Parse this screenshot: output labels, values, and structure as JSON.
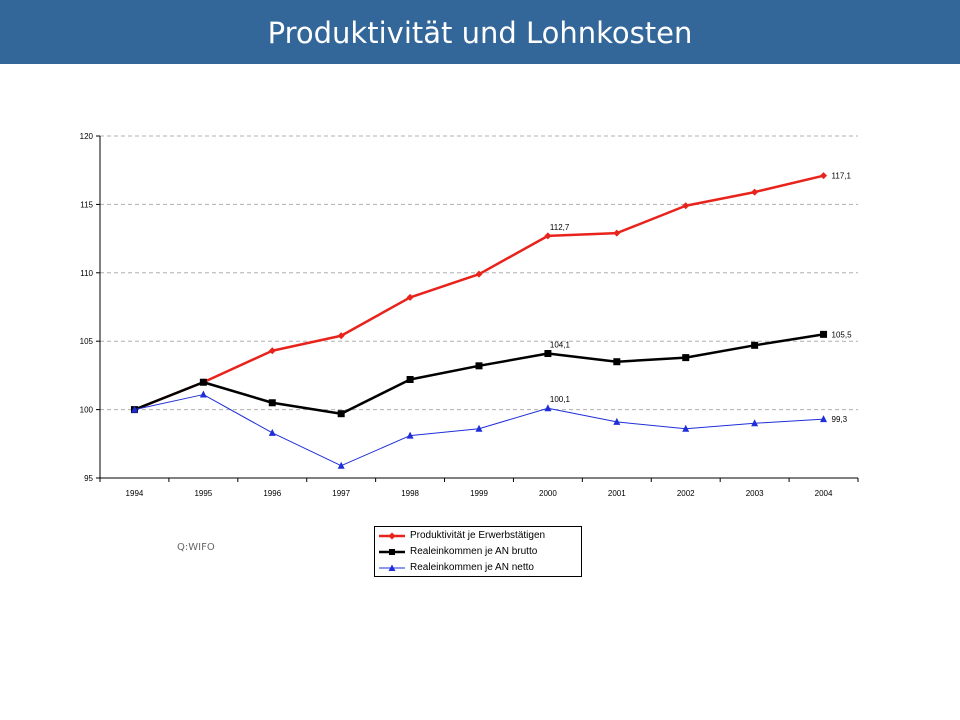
{
  "page": {
    "title": "Produktivität und Lohnkosten",
    "source": "Q:WIFO"
  },
  "colors": {
    "header": "#336699",
    "grid": "#b0b0b0"
  },
  "chart_data": {
    "type": "line",
    "x": [
      "1994",
      "1995",
      "1996",
      "1997",
      "1998",
      "1999",
      "2000",
      "2001",
      "2002",
      "2003",
      "2004"
    ],
    "ylim": [
      95,
      120
    ],
    "yticks": [
      "95",
      "100",
      "105",
      "110",
      "115",
      "120"
    ],
    "grid": true,
    "legend": "bottom",
    "series": [
      {
        "name": "Produktivität je Erwerbstätigen",
        "color": "#e8231b",
        "marker": "diamond",
        "values": [
          100,
          102,
          104.3,
          105.4,
          108.2,
          109.9,
          112.7,
          112.9,
          114.9,
          115.9,
          117.1
        ]
      },
      {
        "name": "Realeinkommen je AN brutto",
        "color": "#000000",
        "marker": "square",
        "values": [
          100,
          102,
          100.5,
          99.7,
          102.2,
          103.2,
          104.1,
          103.5,
          103.8,
          104.7,
          105.5
        ]
      },
      {
        "name": "Realeinkommen je AN netto",
        "color": "#1f2fd8",
        "marker": "triangle",
        "values": [
          100,
          101.1,
          98.3,
          95.9,
          98.1,
          98.6,
          100.1,
          99.1,
          98.6,
          99.0,
          99.3
        ]
      }
    ],
    "annotations": [
      {
        "series": 0,
        "index": 6,
        "text": "112,7"
      },
      {
        "series": 0,
        "index": 10,
        "text": "117,1"
      },
      {
        "series": 1,
        "index": 6,
        "text": "104,1"
      },
      {
        "series": 1,
        "index": 10,
        "text": "105,5"
      },
      {
        "series": 2,
        "index": 6,
        "text": "100,1"
      },
      {
        "series": 2,
        "index": 10,
        "text": "99,3"
      }
    ]
  }
}
